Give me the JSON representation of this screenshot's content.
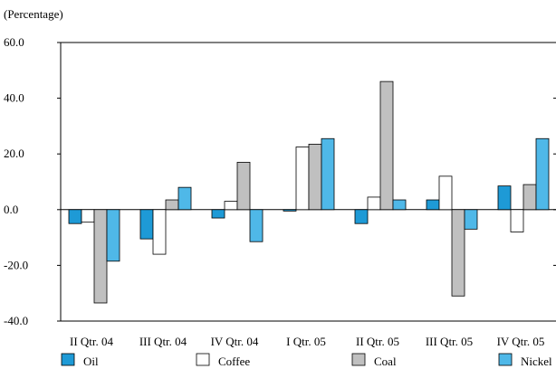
{
  "chart_data": {
    "type": "bar",
    "title": "",
    "ylabel": "(Percentage)",
    "xlabel": "",
    "ylim": [
      -40,
      60
    ],
    "yticks": [
      "60.0",
      "40.0",
      "20.0",
      "0.0",
      "-20.0",
      "-40.0"
    ],
    "ytick_values": [
      60,
      40,
      20,
      0,
      -20,
      -40
    ],
    "categories": [
      "II Qtr. 04",
      "III Qtr. 04",
      "IV Qtr. 04",
      "I Qtr. 05",
      "II Qtr. 05",
      "III Qtr. 05",
      "IV Qtr. 05"
    ],
    "series": [
      {
        "name": "Oil",
        "color": "#1e9ad6",
        "values": [
          -5,
          -10.5,
          -3,
          -0.5,
          -5,
          3.5,
          8.5
        ]
      },
      {
        "name": "Coffee",
        "color": "#ffffff",
        "values": [
          -4.5,
          -16,
          3,
          22.5,
          4.5,
          12,
          -8
        ]
      },
      {
        "name": "Coal",
        "color": "#c0c0c0",
        "values": [
          -33.5,
          3.5,
          17,
          23.5,
          46,
          -31,
          9
        ]
      },
      {
        "name": "Nickel",
        "color": "#4fb8e8",
        "values": [
          -18.5,
          8,
          -11.5,
          25.5,
          3.5,
          -7,
          25.5
        ]
      }
    ],
    "grid": false,
    "legend_position": "bottom"
  }
}
